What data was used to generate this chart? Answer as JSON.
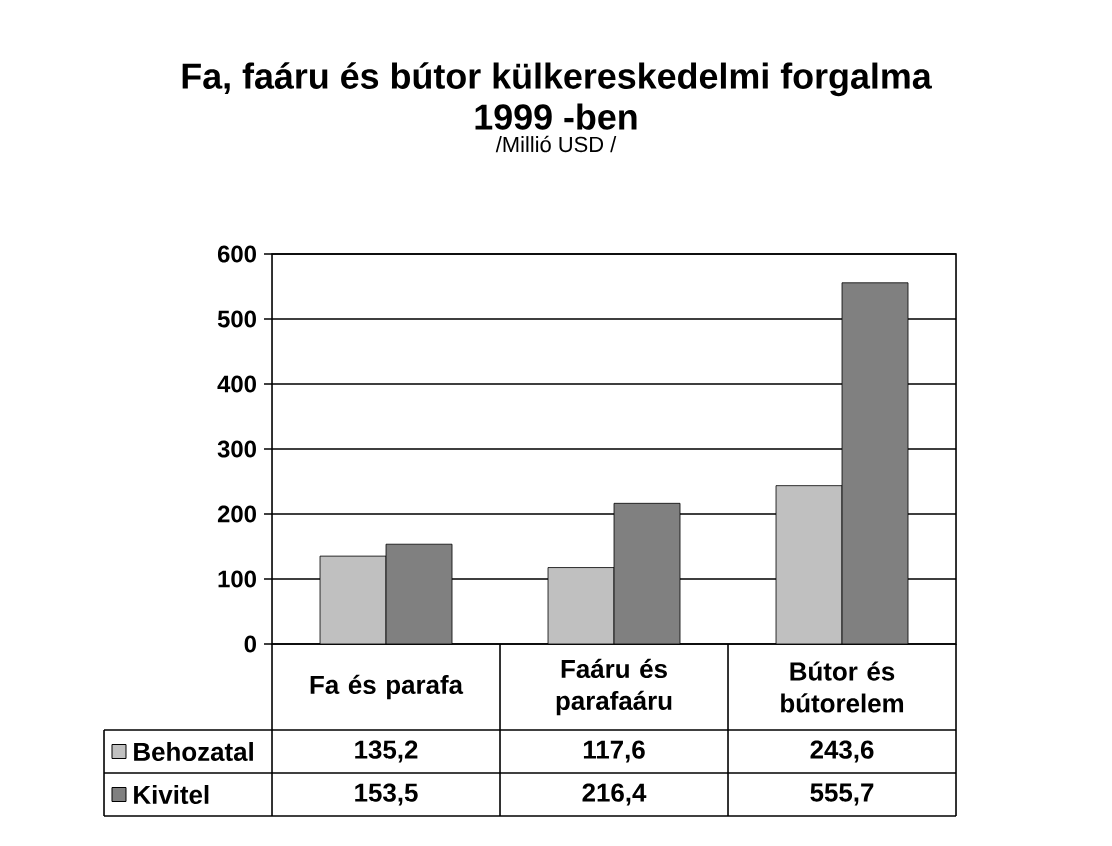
{
  "chart_data": {
    "type": "bar",
    "title": "Fa, faáru és bútor külkereskedelmi forgalma 1999 -ben",
    "subtitle": "/Millió USD /",
    "categories": [
      "Fa és parafa",
      "Faáru és parafaáru",
      "Bútor és bútorelem"
    ],
    "series": [
      {
        "name": "Behozatal",
        "color": "#c0c0c0",
        "values": [
          135.2,
          117.6,
          243.6
        ],
        "value_labels": [
          "135,2",
          "117,6",
          "243,6"
        ]
      },
      {
        "name": "Kivitel",
        "color": "#808080",
        "values": [
          153.5,
          216.4,
          555.7
        ],
        "value_labels": [
          "153,5",
          "216,4",
          "555,7"
        ]
      }
    ],
    "ylim": [
      0,
      600
    ],
    "yticks": [
      0,
      100,
      200,
      300,
      400,
      500,
      600
    ],
    "grid": "y",
    "legend": "bottom"
  }
}
